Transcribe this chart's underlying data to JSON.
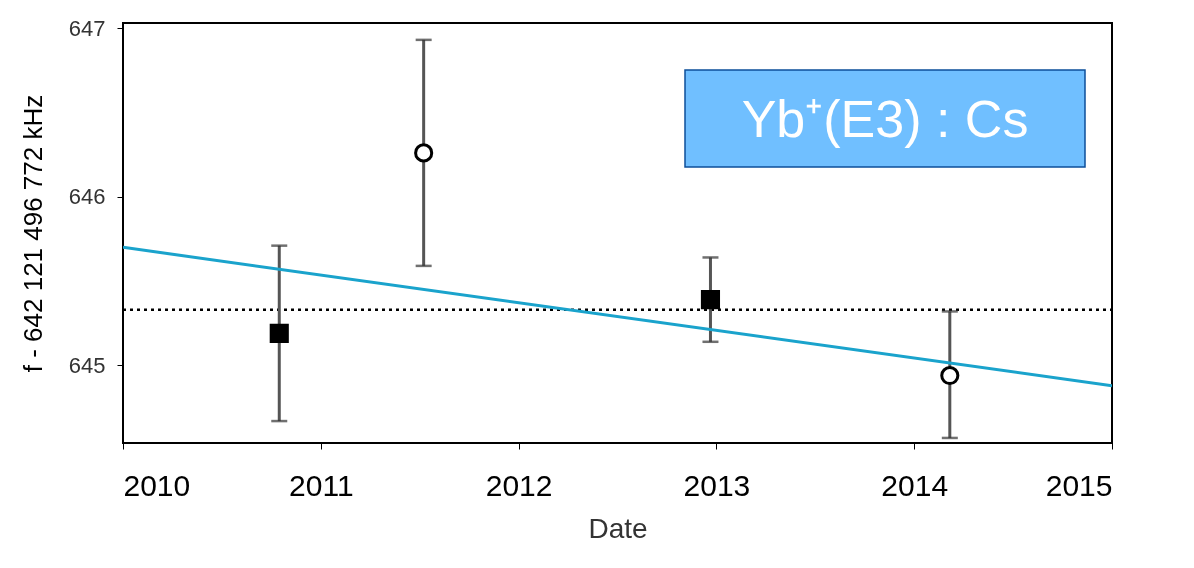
{
  "chart_data": {
    "type": "scatter",
    "xlabel": "Date",
    "ylabel": "f - 642 121 496 772 kHz",
    "xlim": [
      2010,
      2015
    ],
    "xticks": [
      2010,
      2011,
      2012,
      2013,
      2014,
      2015
    ],
    "ylim": [
      644.54,
      647.03
    ],
    "yticks": [
      645,
      646,
      647
    ],
    "grid": false,
    "series": [
      {
        "marker": "square",
        "color": "#000000",
        "x": [
          2010.79,
          2012.97
        ],
        "values": [
          645.19,
          645.39
        ],
        "errors": [
          [
            644.67,
            645.71
          ],
          [
            645.14,
            645.64
          ]
        ]
      },
      {
        "marker": "circle",
        "color": "#000000",
        "x": [
          2011.52,
          2014.18
        ],
        "values": [
          646.26,
          644.94
        ],
        "errors": [
          [
            645.59,
            646.93
          ],
          [
            644.57,
            645.32
          ]
        ]
      },
      {
        "type": "line",
        "color": "#1aa3cc",
        "x": [
          2010,
          2015
        ],
        "values": [
          645.7,
          644.88
        ]
      }
    ],
    "ref_lines": [
      {
        "axis": "y",
        "value": 645.33,
        "line_style": "dotted",
        "color": "#000000"
      }
    ],
    "annotations": [
      "Yb⁺(E3) : Cs"
    ]
  }
}
